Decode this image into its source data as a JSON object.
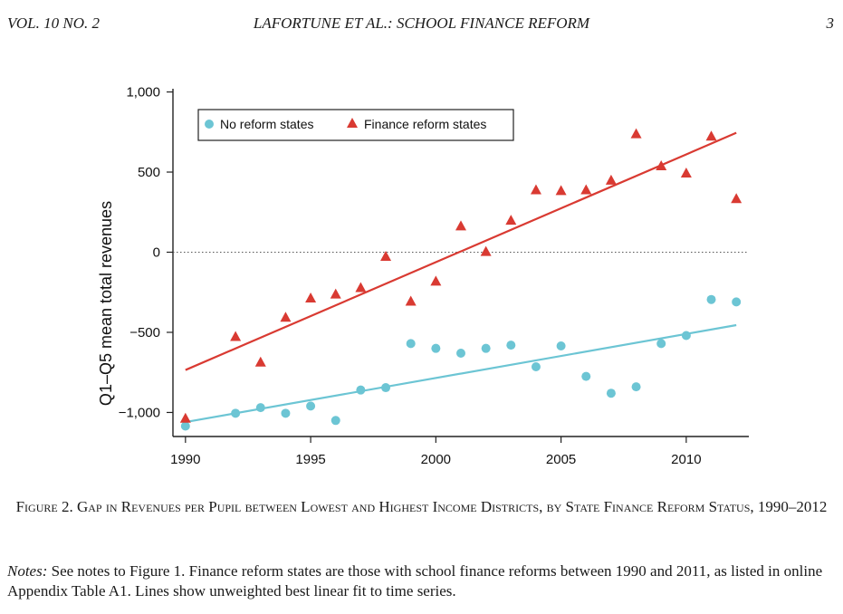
{
  "header": {
    "left": "VOL. 10 NO. 2",
    "center": "LAFORTUNE ET AL.: SCHOOL FINANCE REFORM",
    "page": "3"
  },
  "chart_data": {
    "type": "scatter",
    "title": "",
    "xlabel": "",
    "ylabel": "Q1–Q5 mean total revenues",
    "xlim": [
      1989.5,
      2012.5
    ],
    "ylim": [
      -1150,
      1020
    ],
    "x_ticks": [
      1990,
      1995,
      2000,
      2005,
      2010
    ],
    "y_ticks": [
      {
        "value": 1000,
        "label": "1,000"
      },
      {
        "value": 500,
        "label": "500"
      },
      {
        "value": 0,
        "label": "0"
      },
      {
        "value": -500,
        "label": "−500"
      },
      {
        "value": -1000,
        "label": "−1,000"
      }
    ],
    "reference_line": {
      "y": 0,
      "style": "dotted"
    },
    "legend_position": "top-left",
    "series": [
      {
        "name": "No reform states",
        "marker": "circle",
        "color": "#6cc5d4",
        "points": [
          [
            1990,
            -1085
          ],
          [
            1992,
            -1005
          ],
          [
            1993,
            -970
          ],
          [
            1994,
            -1005
          ],
          [
            1995,
            -960
          ],
          [
            1996,
            -1050
          ],
          [
            1997,
            -860
          ],
          [
            1998,
            -845
          ],
          [
            1999,
            -570
          ],
          [
            2000,
            -600
          ],
          [
            2001,
            -630
          ],
          [
            2002,
            -600
          ],
          [
            2003,
            -580
          ],
          [
            2004,
            -715
          ],
          [
            2005,
            -585
          ],
          [
            2006,
            -775
          ],
          [
            2007,
            -880
          ],
          [
            2008,
            -840
          ],
          [
            2009,
            -570
          ],
          [
            2010,
            -520
          ],
          [
            2011,
            -295
          ],
          [
            2012,
            -310
          ]
        ],
        "fit": [
          [
            1990,
            -1060
          ],
          [
            2012,
            -455
          ]
        ]
      },
      {
        "name": "Finance reform states",
        "marker": "triangle",
        "color": "#d93a32",
        "points": [
          [
            1990,
            -1040
          ],
          [
            1992,
            -530
          ],
          [
            1993,
            -690
          ],
          [
            1994,
            -410
          ],
          [
            1995,
            -290
          ],
          [
            1996,
            -265
          ],
          [
            1997,
            -225
          ],
          [
            1998,
            -30
          ],
          [
            1999,
            -310
          ],
          [
            2000,
            -185
          ],
          [
            2001,
            160
          ],
          [
            2002,
            0
          ],
          [
            2003,
            195
          ],
          [
            2004,
            385
          ],
          [
            2005,
            380
          ],
          [
            2006,
            385
          ],
          [
            2007,
            445
          ],
          [
            2008,
            735
          ],
          [
            2009,
            535
          ],
          [
            2010,
            490
          ],
          [
            2011,
            720
          ],
          [
            2012,
            330
          ]
        ],
        "fit": [
          [
            1990,
            -735
          ],
          [
            2012,
            745
          ]
        ]
      }
    ]
  },
  "caption": "Figure 2. Gap in Revenues per Pupil between Lowest and Highest Income Districts, by State Finance Reform Status, 1990–2012",
  "notes": {
    "label": "Notes:",
    "text": " See notes to Figure 1. Finance reform states are those with school finance reforms between 1990 and 2011, as listed in online Appendix Table A1. Lines show unweighted best linear fit to time series."
  }
}
